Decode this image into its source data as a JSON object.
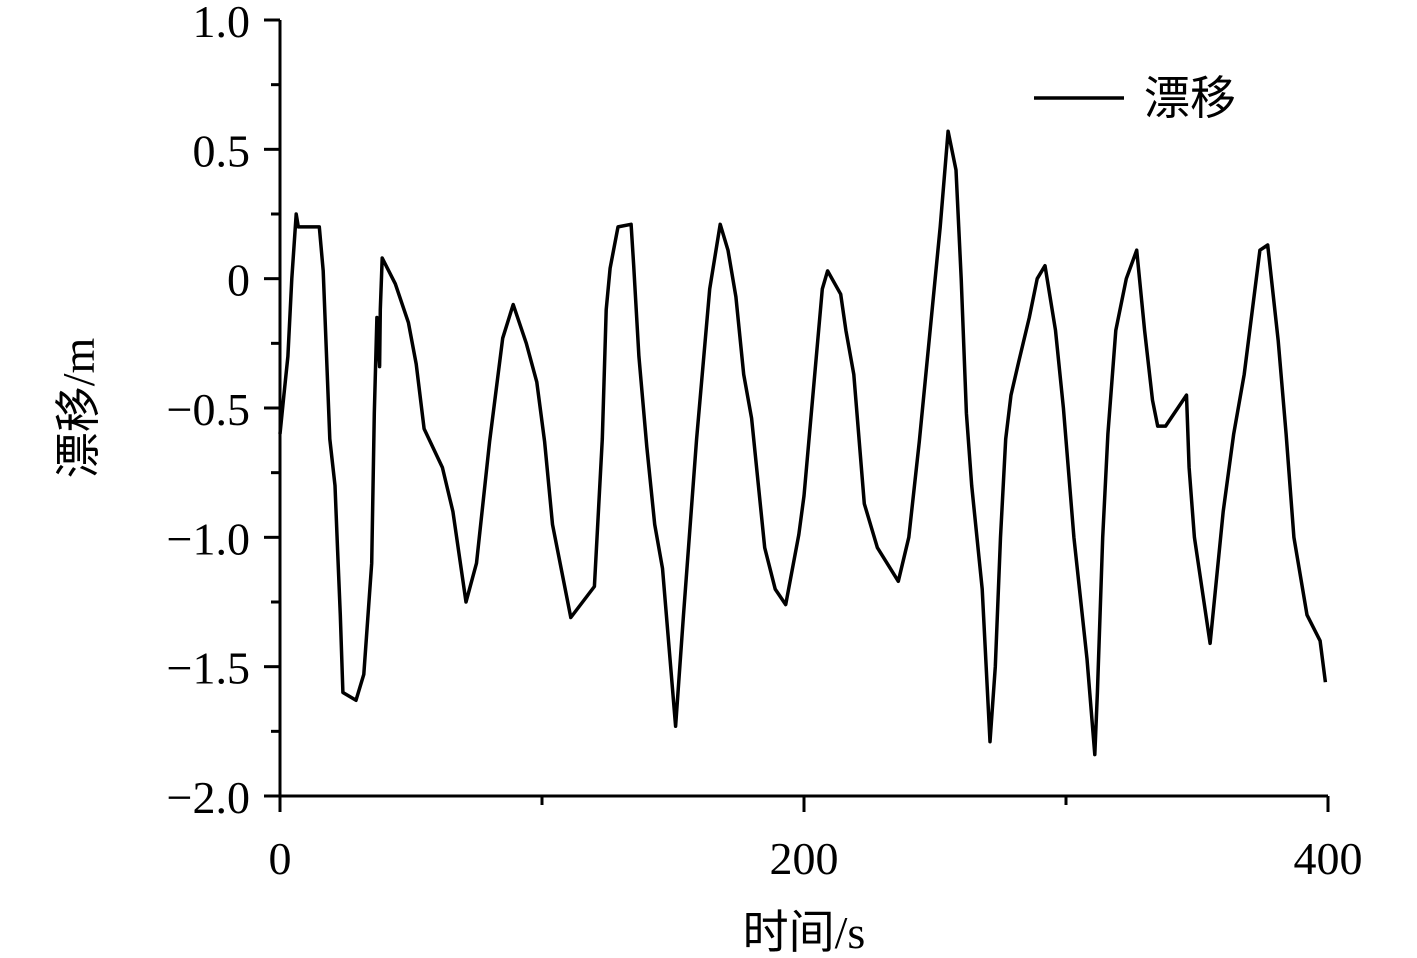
{
  "chart_data": {
    "type": "line",
    "title": "",
    "xlabel": "时间/s",
    "ylabel": "漂移/m",
    "xlim": [
      0,
      400
    ],
    "ylim": [
      -2.0,
      1.0
    ],
    "x_ticks": [
      0,
      200,
      400
    ],
    "x_minor_ticks": [
      100,
      300
    ],
    "y_ticks": [
      1.0,
      0.5,
      0,
      -0.5,
      -1.0,
      -1.5,
      -2.0
    ],
    "y_tick_labels": [
      "1.0",
      "0.5",
      "0",
      "−0.5",
      "−1.0",
      "−1.5",
      "−2.0"
    ],
    "y_minor_ticks": [
      0.75,
      0.25,
      -0.25,
      -0.75,
      -1.25,
      -1.75
    ],
    "grid": false,
    "legend": {
      "position": "top-right"
    },
    "series": [
      {
        "name": "漂移",
        "color": "#000000",
        "x": [
          0,
          1.5,
          3,
          4.5,
          6.2,
          7,
          10,
          15,
          16.5,
          19,
          21,
          22,
          23,
          24,
          29,
          32,
          35,
          36,
          37,
          38,
          38.3,
          39,
          44,
          49,
          52,
          55,
          62,
          66,
          71,
          75,
          80,
          85,
          89,
          94,
          98,
          101,
          104,
          111,
          120,
          123,
          124.5,
          126,
          129,
          134,
          135,
          137,
          140,
          143,
          146,
          151,
          154,
          159,
          164,
          168,
          171,
          174,
          177,
          180,
          185,
          189,
          193,
          198,
          200,
          207,
          209,
          214,
          216,
          219,
          223,
          228,
          236,
          240,
          244,
          252,
          255,
          258,
          260,
          262,
          264,
          268,
          271,
          273,
          275,
          277,
          279,
          282,
          286,
          289,
          292,
          296,
          299,
          303,
          308,
          311,
          312,
          314,
          316,
          319,
          323,
          327,
          330,
          333,
          335,
          338,
          346,
          347,
          349,
          355,
          360,
          364,
          368,
          374,
          377,
          381,
          384,
          387,
          392,
          397,
          399
        ],
        "y": [
          -0.6,
          -0.45,
          -0.3,
          0.0,
          0.25,
          0.2,
          0.2,
          0.2,
          0.03,
          -0.62,
          -0.8,
          -1.05,
          -1.3,
          -1.6,
          -1.63,
          -1.53,
          -1.1,
          -0.52,
          -0.15,
          -0.34,
          -0.12,
          0.08,
          -0.02,
          -0.17,
          -0.33,
          -0.58,
          -0.73,
          -0.9,
          -1.25,
          -1.1,
          -0.63,
          -0.23,
          -0.1,
          -0.25,
          -0.4,
          -0.63,
          -0.95,
          -1.31,
          -1.19,
          -0.62,
          -0.12,
          0.04,
          0.2,
          0.21,
          0.05,
          -0.3,
          -0.65,
          -0.95,
          -1.12,
          -1.73,
          -1.3,
          -0.62,
          -0.04,
          0.21,
          0.11,
          -0.07,
          -0.37,
          -0.54,
          -1.04,
          -1.2,
          -1.26,
          -0.99,
          -0.84,
          -0.04,
          0.03,
          -0.06,
          -0.2,
          -0.37,
          -0.87,
          -1.04,
          -1.17,
          -1.0,
          -0.63,
          0.2,
          0.57,
          0.42,
          0.0,
          -0.52,
          -0.8,
          -1.2,
          -1.79,
          -1.5,
          -1.0,
          -0.62,
          -0.45,
          -0.32,
          -0.15,
          0.0,
          0.05,
          -0.2,
          -0.5,
          -1.0,
          -1.47,
          -1.84,
          -1.6,
          -1.0,
          -0.6,
          -0.2,
          0.0,
          0.11,
          -0.2,
          -0.47,
          -0.57,
          -0.57,
          -0.45,
          -0.73,
          -1.0,
          -1.41,
          -0.9,
          -0.6,
          -0.37,
          0.11,
          0.13,
          -0.24,
          -0.6,
          -1.0,
          -1.3,
          -1.4,
          -1.56
        ]
      }
    ]
  }
}
